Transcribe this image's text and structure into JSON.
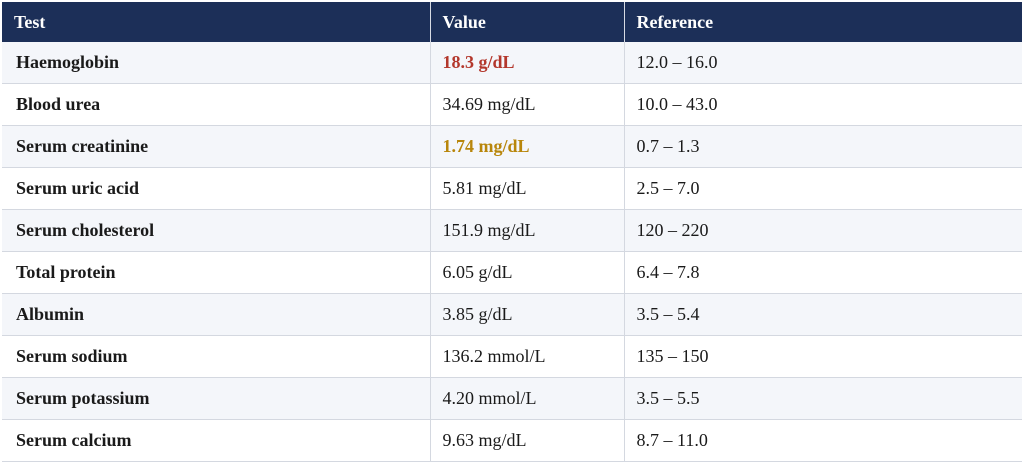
{
  "table": {
    "headers": [
      "Test",
      "Value",
      "Reference"
    ],
    "colors": {
      "header_bg": "#1c2f58",
      "high_flag": "#b3372c",
      "borderline_flag": "#b8860b"
    },
    "rows": [
      {
        "test": "Haemoglobin",
        "value": "18.3 g/dL",
        "reference": "12.0 – 16.0",
        "flag": "high"
      },
      {
        "test": "Blood urea",
        "value": "34.69 mg/dL",
        "reference": "10.0 – 43.0",
        "flag": ""
      },
      {
        "test": "Serum creatinine",
        "value": "1.74 mg/dL",
        "reference": "0.7 – 1.3",
        "flag": "borderline"
      },
      {
        "test": "Serum uric acid",
        "value": "5.81 mg/dL",
        "reference": "2.5 – 7.0",
        "flag": ""
      },
      {
        "test": "Serum cholesterol",
        "value": "151.9 mg/dL",
        "reference": "120 – 220",
        "flag": ""
      },
      {
        "test": "Total protein",
        "value": "6.05 g/dL",
        "reference": "6.4 – 7.8",
        "flag": ""
      },
      {
        "test": "Albumin",
        "value": "3.85 g/dL",
        "reference": "3.5 – 5.4",
        "flag": ""
      },
      {
        "test": "Serum sodium",
        "value": "136.2 mmol/L",
        "reference": "135 – 150",
        "flag": ""
      },
      {
        "test": "Serum potassium",
        "value": "4.20 mmol/L",
        "reference": "3.5 – 5.5",
        "flag": ""
      },
      {
        "test": "Serum calcium",
        "value": "9.63 mg/dL",
        "reference": "8.7 – 11.0",
        "flag": ""
      }
    ]
  }
}
